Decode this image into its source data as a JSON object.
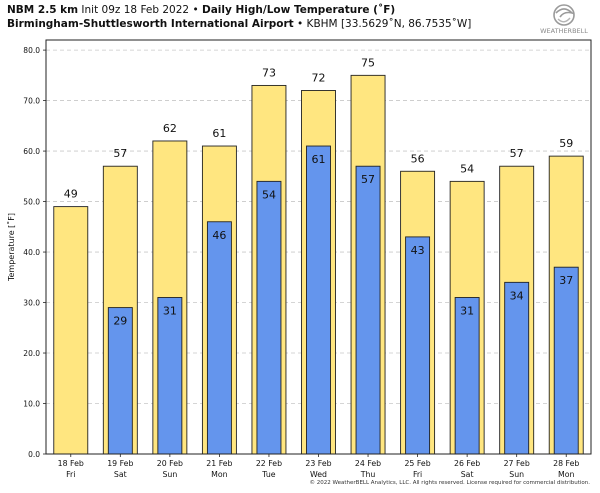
{
  "header": {
    "model": "NBM 2.5 km",
    "init": "Init 09z 18 Feb 2022",
    "bullet": "•",
    "title": "Daily High/Low Temperature (˚F)",
    "station": "Birmingham-Shuttlesworth International Airport",
    "station_meta": "• KBHM [33.5629˚N, 86.7535˚W]"
  },
  "logo": {
    "text": "WEATHERBELL",
    "icon": "swirl-icon"
  },
  "footer": "© 2022 WeatherBELL Analytics, LLC. All rights reserved. License required for commercial distribution.",
  "colors": {
    "high": "#ffe680",
    "low": "#6495ed",
    "border": "#222222",
    "grid": "#c8c8c8",
    "plot_bg": "#ffffff"
  },
  "chart_data": {
    "type": "bar",
    "ylabel": "Temperature [˚F]",
    "ylim": [
      0,
      82
    ],
    "yticks": [
      "0.0",
      "10.0",
      "20.0",
      "30.0",
      "40.0",
      "50.0",
      "60.0",
      "70.0",
      "80.0"
    ],
    "grid": true,
    "categories": [
      [
        "18 Feb",
        "Fri"
      ],
      [
        "19 Feb",
        "Sat"
      ],
      [
        "20 Feb",
        "Sun"
      ],
      [
        "21 Feb",
        "Mon"
      ],
      [
        "22 Feb",
        "Tue"
      ],
      [
        "23 Feb",
        "Wed"
      ],
      [
        "24 Feb",
        "Thu"
      ],
      [
        "25 Feb",
        "Fri"
      ],
      [
        "26 Feb",
        "Sat"
      ],
      [
        "27 Feb",
        "Sun"
      ],
      [
        "28 Feb",
        "Mon"
      ]
    ],
    "series": [
      {
        "key": "high",
        "values": [
          49,
          57,
          62,
          61,
          73,
          72,
          75,
          56,
          54,
          57,
          59
        ],
        "labels": [
          "49",
          "57",
          "62",
          "61",
          "73",
          "72",
          "75",
          "56",
          "54",
          "57",
          "59"
        ]
      },
      {
        "key": "low",
        "values": [
          null,
          29,
          31,
          46,
          54,
          61,
          57,
          43,
          31,
          34,
          37
        ],
        "labels": [
          "",
          "29",
          "31",
          "46",
          "54",
          "61",
          "57",
          "43",
          "31",
          "34",
          "37"
        ]
      }
    ]
  }
}
